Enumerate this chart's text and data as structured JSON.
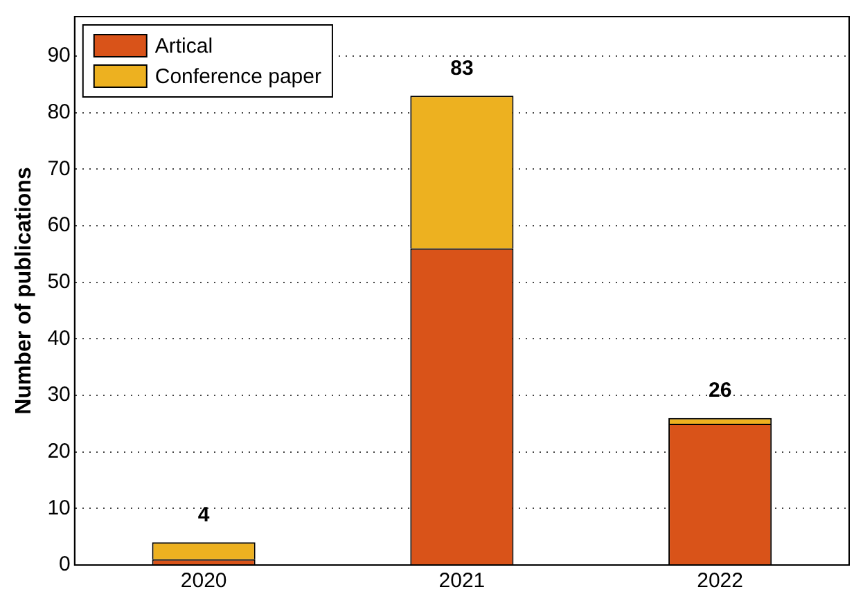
{
  "chart_data": {
    "type": "bar",
    "stacked": true,
    "ylabel": "Number of publications",
    "categories": [
      "2020",
      "2021",
      "2022"
    ],
    "series": [
      {
        "name": "Artical",
        "color": "#d95319",
        "values": [
          1,
          56,
          25
        ]
      },
      {
        "name": "Conference paper",
        "color": "#edb120",
        "values": [
          3,
          27,
          1
        ]
      }
    ],
    "totals": [
      "4",
      "83",
      "26"
    ],
    "ylim": [
      0,
      97
    ],
    "yticks": [
      0,
      10,
      20,
      30,
      40,
      50,
      60,
      70,
      80,
      90
    ],
    "grid": "y",
    "legend": "top left"
  }
}
